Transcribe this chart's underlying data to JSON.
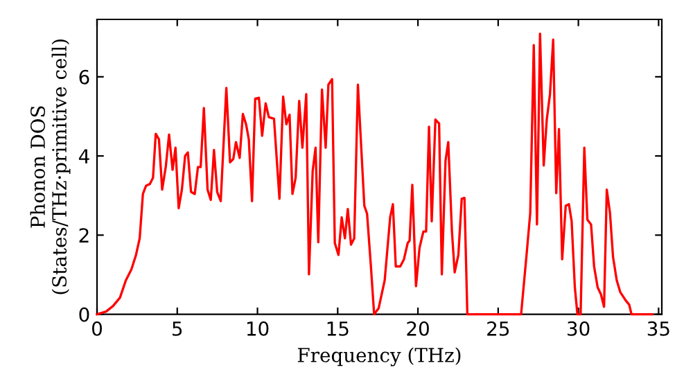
{
  "chart_data": {
    "type": "line",
    "xlabel": "Frequency (THz)",
    "ylabel": "Phonon DOS\n(States/THz·primitive cell)",
    "xlim": [
      0,
      35.2
    ],
    "ylim": [
      0,
      7.45
    ],
    "xticks": [
      0,
      5,
      10,
      15,
      20,
      25,
      30,
      35
    ],
    "yticks": [
      0,
      2,
      4,
      6
    ],
    "grid": false,
    "marker": "none",
    "line_style": "solid",
    "series": [
      {
        "color": "#ff0000",
        "x": [
          0,
          0.57,
          1.0,
          1.43,
          1.8,
          2.14,
          2.43,
          2.66,
          2.86,
          3.06,
          3.29,
          3.49,
          3.66,
          3.86,
          4.06,
          4.29,
          4.49,
          4.71,
          4.89,
          5.09,
          5.29,
          5.49,
          5.66,
          5.86,
          6.09,
          6.29,
          6.46,
          6.66,
          6.89,
          7.09,
          7.29,
          7.49,
          7.71,
          8.06,
          8.29,
          8.49,
          8.66,
          8.89,
          9.09,
          9.29,
          9.46,
          9.66,
          9.86,
          10.09,
          10.29,
          10.51,
          10.71,
          11.03,
          11.37,
          11.6,
          11.8,
          12.0,
          12.18,
          12.38,
          12.6,
          12.8,
          13.04,
          13.21,
          13.44,
          13.62,
          13.79,
          14.02,
          14.25,
          14.42,
          14.65,
          14.82,
          15.05,
          15.25,
          15.45,
          15.63,
          15.83,
          16.03,
          16.26,
          16.66,
          16.83,
          17.06,
          17.27,
          17.55,
          17.93,
          18.27,
          18.44,
          18.62,
          18.9,
          19.13,
          19.36,
          19.48,
          19.65,
          19.88,
          20.1,
          20.34,
          20.51,
          20.69,
          20.86,
          21.09,
          21.32,
          21.49,
          21.72,
          21.89,
          22.12,
          22.29,
          22.52,
          22.73,
          22.9,
          23.08,
          26.43,
          26.77,
          27.0,
          27.22,
          27.42,
          27.61,
          27.84,
          28.03,
          28.23,
          28.43,
          28.62,
          28.79,
          28.99,
          29.21,
          29.41,
          29.58,
          29.78,
          29.94,
          30.14,
          30.37,
          30.56,
          30.79,
          30.98,
          31.2,
          31.4,
          31.6,
          31.77,
          31.97,
          32.16,
          32.39,
          32.61,
          32.95,
          33.17,
          33.31,
          34.6
        ],
        "values": [
          0,
          0.07,
          0.21,
          0.42,
          0.86,
          1.13,
          1.5,
          1.92,
          3.04,
          3.25,
          3.29,
          3.45,
          4.56,
          4.42,
          3.15,
          3.74,
          4.54,
          3.65,
          4.21,
          2.68,
          3.15,
          4.0,
          4.09,
          3.09,
          3.04,
          3.72,
          3.72,
          5.21,
          3.15,
          2.89,
          4.15,
          3.09,
          2.86,
          5.72,
          3.84,
          3.92,
          4.35,
          3.95,
          5.06,
          4.8,
          4.42,
          2.86,
          5.45,
          5.47,
          4.51,
          5.33,
          4.98,
          4.94,
          2.92,
          5.5,
          4.8,
          5.04,
          3.04,
          3.45,
          5.39,
          4.21,
          5.56,
          1.01,
          3.62,
          4.21,
          1.82,
          5.68,
          4.21,
          5.8,
          5.94,
          1.8,
          1.5,
          2.45,
          1.92,
          2.66,
          1.76,
          1.92,
          5.8,
          2.74,
          2.54,
          1.27,
          0,
          0.15,
          0.86,
          2.45,
          2.78,
          1.21,
          1.21,
          1.39,
          1.8,
          1.86,
          3.27,
          0.71,
          1.68,
          2.09,
          2.09,
          4.74,
          2.35,
          4.92,
          4.82,
          1.01,
          3.88,
          4.35,
          2.09,
          1.06,
          1.5,
          2.92,
          2.94,
          0,
          0,
          1.5,
          2.56,
          6.8,
          2.27,
          7.09,
          3.76,
          4.92,
          5.56,
          6.94,
          3.06,
          4.68,
          1.39,
          2.74,
          2.78,
          2.35,
          0.68,
          0,
          0,
          4.21,
          2.39,
          2.27,
          1.21,
          0.68,
          0.51,
          0.19,
          3.15,
          2.56,
          1.45,
          0.86,
          0.56,
          0.35,
          0.24,
          0,
          0
        ]
      }
    ]
  }
}
